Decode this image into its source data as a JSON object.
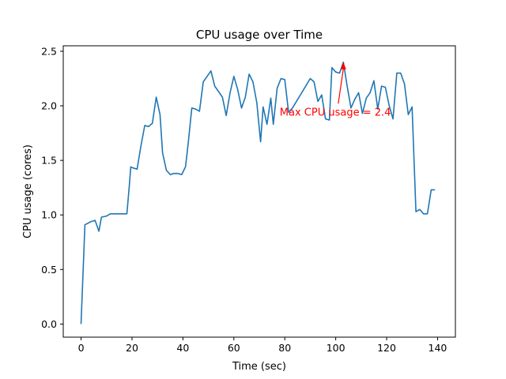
{
  "chart_data": {
    "type": "line",
    "title": "CPU usage over Time",
    "xlabel": "Time (sec)",
    "ylabel": "CPU usage (cores)",
    "xlim": [
      -7,
      147
    ],
    "ylim": [
      -0.12,
      2.55
    ],
    "grid": false,
    "xticks": [
      0,
      20,
      40,
      60,
      80,
      100,
      120,
      140
    ],
    "yticks": [
      0.0,
      0.5,
      1.0,
      1.5,
      2.0,
      2.5
    ],
    "xtick_labels": [
      "0",
      "20",
      "40",
      "60",
      "80",
      "100",
      "120",
      "140"
    ],
    "ytick_labels": [
      "0.0",
      "0.5",
      "1.0",
      "1.5",
      "2.0",
      "2.5"
    ],
    "line_color": "#1f77b4",
    "series": [
      {
        "x": [
          0,
          1.5,
          4,
          5.5,
          7,
          8,
          10,
          11.5,
          14,
          16,
          18,
          19,
          19.5,
          20.5,
          22,
          23.5,
          25,
          26.5,
          28,
          29.5,
          31,
          32,
          33.5,
          35,
          36.5,
          38,
          39.5,
          41,
          42,
          43.5,
          45,
          46.5,
          48,
          49.5,
          51,
          52.5,
          54,
          55.5,
          57,
          58.5,
          60,
          61.5,
          63,
          64.5,
          66,
          67.5,
          69,
          70.5,
          71.5,
          73,
          74.5,
          75.5,
          77,
          78.5,
          80,
          81.5,
          83,
          90,
          91.5,
          93,
          94.5,
          96,
          97.5,
          98.5,
          100,
          101.5,
          103,
          104.5,
          106,
          107.5,
          109,
          110.5,
          112,
          113.5,
          115,
          116.5,
          118,
          119.5,
          121,
          122.5,
          124,
          125.5,
          127,
          128.5,
          130,
          131.5,
          133,
          134.5,
          136,
          137.5,
          139
        ],
        "y": [
          0.0,
          0.91,
          0.94,
          0.95,
          0.85,
          0.98,
          0.99,
          1.01,
          1.01,
          1.01,
          1.01,
          1.28,
          1.44,
          1.43,
          1.42,
          1.63,
          1.82,
          1.81,
          1.84,
          2.08,
          1.92,
          1.57,
          1.41,
          1.37,
          1.38,
          1.38,
          1.37,
          1.44,
          1.64,
          1.98,
          1.97,
          1.95,
          2.22,
          2.27,
          2.32,
          2.18,
          2.13,
          2.08,
          1.91,
          2.12,
          2.27,
          2.15,
          1.98,
          2.08,
          2.29,
          2.22,
          2.03,
          1.67,
          1.99,
          1.83,
          2.07,
          1.83,
          2.16,
          2.25,
          2.24,
          1.94,
          1.98,
          2.25,
          2.22,
          2.04,
          2.1,
          1.88,
          1.87,
          2.35,
          2.31,
          2.3,
          2.4,
          2.18,
          1.98,
          2.06,
          2.12,
          1.93,
          2.07,
          2.12,
          2.23,
          1.97,
          2.18,
          2.17,
          2.0,
          1.88,
          2.3,
          2.3,
          2.2,
          1.92,
          1.99,
          1.03,
          1.05,
          1.01,
          1.01,
          1.23,
          1.23
        ]
      }
    ],
    "annotation": {
      "text": "Max CPU usage = 2.4",
      "x": 103,
      "y": 2.4,
      "text_x": 78,
      "text_y": 1.91,
      "color": "#ff0000"
    }
  }
}
